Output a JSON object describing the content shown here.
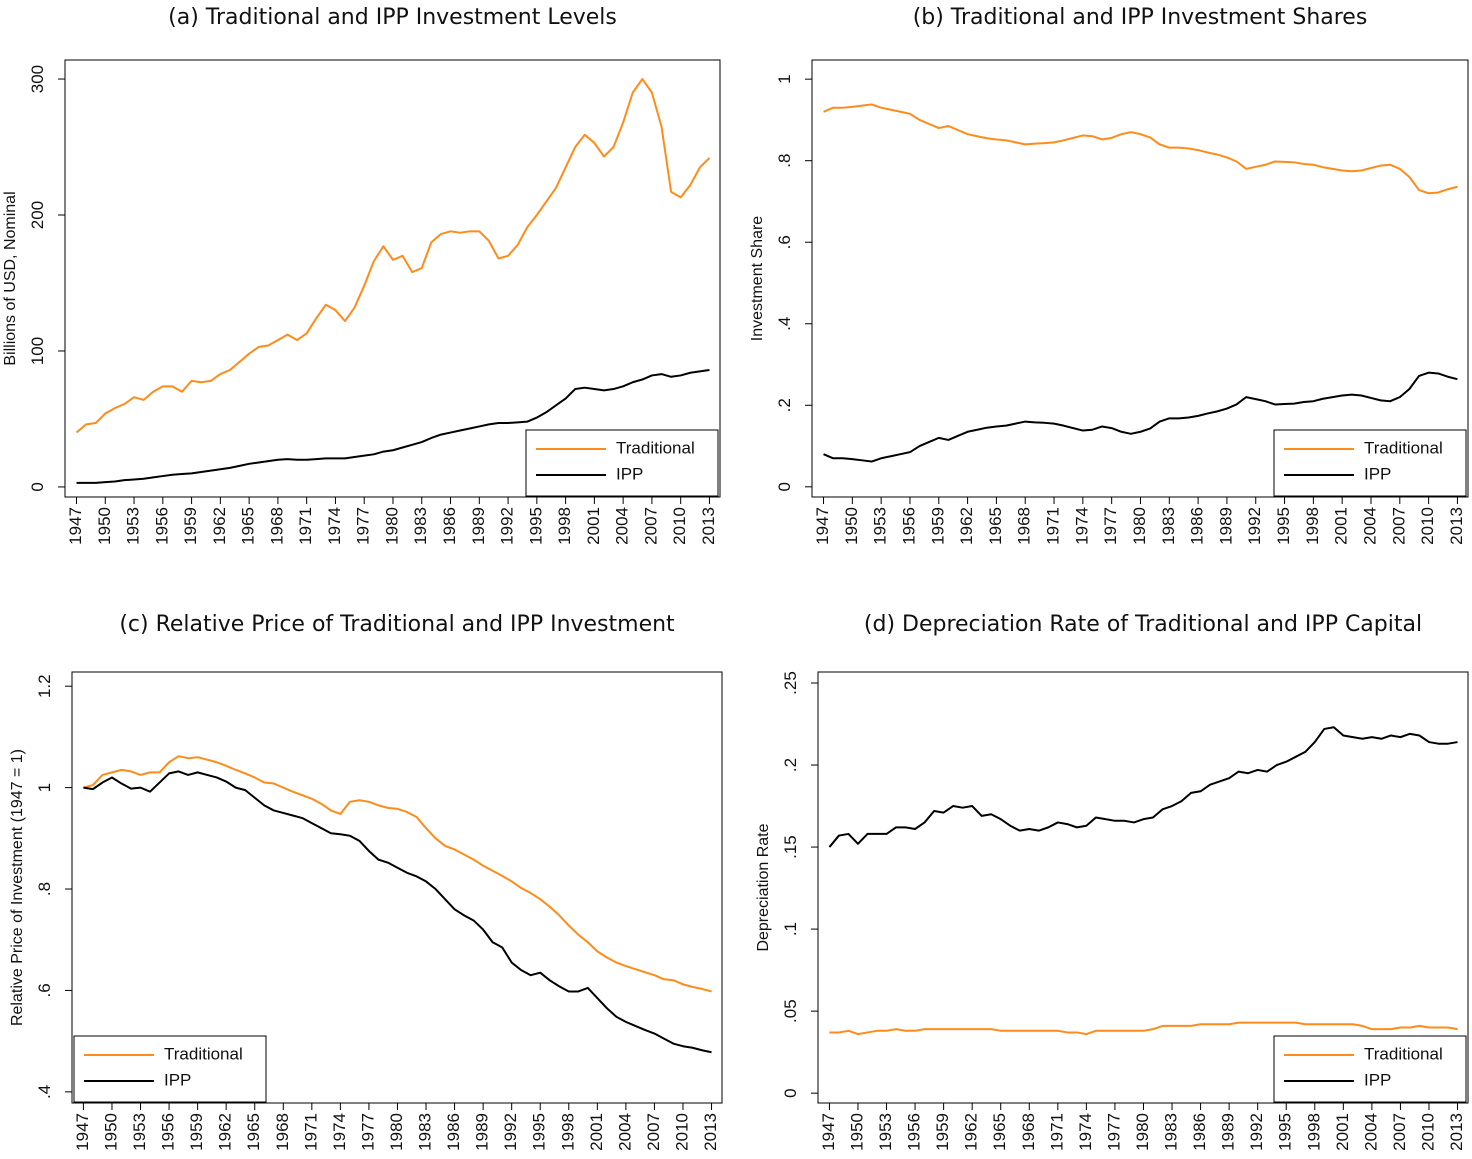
{
  "chart_data": [
    {
      "type": "line",
      "title": "(a) Traditional and IPP Investment Levels",
      "ylabel": "Billions of USD, Nominal",
      "x": [
        1947,
        1948,
        1949,
        1950,
        1951,
        1952,
        1953,
        1954,
        1955,
        1956,
        1957,
        1958,
        1959,
        1960,
        1961,
        1962,
        1963,
        1964,
        1965,
        1966,
        1967,
        1968,
        1969,
        1970,
        1971,
        1972,
        1973,
        1974,
        1975,
        1976,
        1977,
        1978,
        1979,
        1980,
        1981,
        1982,
        1983,
        1984,
        1985,
        1986,
        1987,
        1988,
        1989,
        1990,
        1991,
        1992,
        1993,
        1994,
        1995,
        1996,
        1997,
        1998,
        1999,
        2000,
        2001,
        2002,
        2003,
        2004,
        2005,
        2006,
        2007,
        2008,
        2009,
        2010,
        2011,
        2012,
        2013
      ],
      "series": [
        {
          "name": "Traditional",
          "color": "#ff8c1a",
          "values": [
            40,
            46,
            47,
            54,
            58,
            61,
            66,
            64,
            70,
            74,
            74,
            70,
            78,
            77,
            78,
            83,
            86,
            92,
            98,
            103,
            104,
            108,
            112,
            108,
            113,
            124,
            134,
            130,
            122,
            132,
            148,
            166,
            177,
            167,
            170,
            158,
            161,
            180,
            186,
            188,
            187,
            188,
            188,
            181,
            168,
            170,
            178,
            191,
            200,
            210,
            220,
            235,
            250,
            259,
            253,
            243,
            250,
            268,
            290,
            300,
            290,
            265,
            217,
            213,
            222,
            235,
            242
          ]
        },
        {
          "name": "IPP",
          "color": "#000000",
          "values": [
            3,
            3,
            3,
            3.5,
            4,
            5,
            5.5,
            6,
            7,
            8,
            9,
            9.5,
            10,
            11,
            12,
            13,
            14,
            15.5,
            17,
            18,
            19,
            20,
            20.5,
            20,
            20,
            20.5,
            21,
            21,
            21,
            22,
            23,
            24,
            26,
            27,
            29,
            31,
            33,
            36,
            38.5,
            40,
            41.5,
            43,
            44.5,
            46,
            47,
            47,
            47.5,
            48,
            51,
            55,
            60,
            65,
            72,
            73,
            72,
            71,
            72,
            74,
            77,
            79,
            82,
            83,
            81,
            82,
            84,
            85,
            86
          ]
        }
      ],
      "xlim": [
        1945.8,
        2014.1
      ],
      "ylim": [
        -7.4,
        314
      ],
      "xticks": [
        1947,
        1950,
        1953,
        1956,
        1959,
        1962,
        1965,
        1968,
        1971,
        1974,
        1977,
        1980,
        1983,
        1986,
        1989,
        1992,
        1995,
        1998,
        2001,
        2004,
        2007,
        2010,
        2013
      ],
      "yticks": [
        0,
        100,
        200,
        300
      ],
      "legend": "lower right"
    },
    {
      "type": "line",
      "title": "(b) Traditional and IPP Investment Shares",
      "ylabel": "Investment Share",
      "x": [
        1947,
        1948,
        1949,
        1950,
        1951,
        1952,
        1953,
        1954,
        1955,
        1956,
        1957,
        1958,
        1959,
        1960,
        1961,
        1962,
        1963,
        1964,
        1965,
        1966,
        1967,
        1968,
        1969,
        1970,
        1971,
        1972,
        1973,
        1974,
        1975,
        1976,
        1977,
        1978,
        1979,
        1980,
        1981,
        1982,
        1983,
        1984,
        1985,
        1986,
        1987,
        1988,
        1989,
        1990,
        1991,
        1992,
        1993,
        1994,
        1995,
        1996,
        1997,
        1998,
        1999,
        2000,
        2001,
        2002,
        2003,
        2004,
        2005,
        2006,
        2007,
        2008,
        2009,
        2010,
        2011,
        2012,
        2013
      ],
      "series": [
        {
          "name": "Traditional",
          "color": "#ff8c1a",
          "values": [
            0.92,
            0.93,
            0.93,
            0.932,
            0.935,
            0.938,
            0.93,
            0.925,
            0.92,
            0.915,
            0.9,
            0.89,
            0.88,
            0.885,
            0.875,
            0.865,
            0.86,
            0.855,
            0.852,
            0.85,
            0.845,
            0.84,
            0.842,
            0.843,
            0.845,
            0.85,
            0.856,
            0.862,
            0.86,
            0.852,
            0.856,
            0.865,
            0.87,
            0.865,
            0.857,
            0.84,
            0.832,
            0.832,
            0.83,
            0.826,
            0.82,
            0.815,
            0.808,
            0.798,
            0.78,
            0.785,
            0.79,
            0.798,
            0.797,
            0.796,
            0.792,
            0.79,
            0.784,
            0.78,
            0.776,
            0.774,
            0.776,
            0.782,
            0.788,
            0.79,
            0.78,
            0.76,
            0.728,
            0.72,
            0.722,
            0.73,
            0.736
          ]
        },
        {
          "name": "IPP",
          "color": "#000000",
          "values": [
            0.08,
            0.07,
            0.07,
            0.068,
            0.065,
            0.062,
            0.07,
            0.075,
            0.08,
            0.085,
            0.1,
            0.11,
            0.12,
            0.115,
            0.125,
            0.135,
            0.14,
            0.145,
            0.148,
            0.15,
            0.155,
            0.16,
            0.158,
            0.157,
            0.155,
            0.15,
            0.144,
            0.138,
            0.14,
            0.148,
            0.144,
            0.135,
            0.13,
            0.135,
            0.143,
            0.16,
            0.168,
            0.168,
            0.17,
            0.174,
            0.18,
            0.185,
            0.192,
            0.202,
            0.22,
            0.215,
            0.21,
            0.202,
            0.203,
            0.204,
            0.208,
            0.21,
            0.216,
            0.22,
            0.224,
            0.226,
            0.224,
            0.218,
            0.212,
            0.21,
            0.22,
            0.24,
            0.272,
            0.28,
            0.278,
            0.27,
            0.264
          ]
        }
      ],
      "xlim": [
        1945.8,
        2014.1
      ],
      "ylim": [
        -0.025,
        1.047
      ],
      "xticks": [
        1947,
        1950,
        1953,
        1956,
        1959,
        1962,
        1965,
        1968,
        1971,
        1974,
        1977,
        1980,
        1983,
        1986,
        1989,
        1992,
        1995,
        1998,
        2001,
        2004,
        2007,
        2010,
        2013
      ],
      "yticks": [
        0,
        {
          "value": 0.2,
          "label": ".2"
        },
        {
          "value": 0.4,
          "label": ".4"
        },
        {
          "value": 0.6,
          "label": ".6"
        },
        {
          "value": 0.8,
          "label": ".8"
        },
        1
      ],
      "legend": "lower right"
    },
    {
      "type": "line",
      "title": "(c) Relative Price of Traditional and IPP Investment",
      "ylabel": "Relative Price of Investment (1947 = 1)",
      "x": [
        1947,
        1948,
        1949,
        1950,
        1951,
        1952,
        1953,
        1954,
        1955,
        1956,
        1957,
        1958,
        1959,
        1960,
        1961,
        1962,
        1963,
        1964,
        1965,
        1966,
        1967,
        1968,
        1969,
        1970,
        1971,
        1972,
        1973,
        1974,
        1975,
        1976,
        1977,
        1978,
        1979,
        1980,
        1981,
        1982,
        1983,
        1984,
        1985,
        1986,
        1987,
        1988,
        1989,
        1990,
        1991,
        1992,
        1993,
        1994,
        1995,
        1996,
        1997,
        1998,
        1999,
        2000,
        2001,
        2002,
        2003,
        2004,
        2005,
        2006,
        2007,
        2008,
        2009,
        2010,
        2011,
        2012,
        2013
      ],
      "series": [
        {
          "name": "Traditional",
          "color": "#ff8c1a",
          "values": [
            1.0,
            1.005,
            1.025,
            1.03,
            1.035,
            1.032,
            1.025,
            1.03,
            1.03,
            1.05,
            1.062,
            1.058,
            1.06,
            1.055,
            1.05,
            1.043,
            1.035,
            1.028,
            1.02,
            1.01,
            1.008,
            1.0,
            0.992,
            0.985,
            0.978,
            0.968,
            0.955,
            0.948,
            0.972,
            0.975,
            0.972,
            0.965,
            0.96,
            0.958,
            0.952,
            0.942,
            0.92,
            0.9,
            0.885,
            0.878,
            0.868,
            0.858,
            0.846,
            0.836,
            0.826,
            0.815,
            0.802,
            0.792,
            0.78,
            0.765,
            0.748,
            0.728,
            0.71,
            0.695,
            0.677,
            0.665,
            0.655,
            0.648,
            0.642,
            0.636,
            0.63,
            0.622,
            0.62,
            0.612,
            0.607,
            0.603,
            0.598
          ]
        },
        {
          "name": "IPP",
          "color": "#000000",
          "values": [
            1.0,
            0.997,
            1.01,
            1.02,
            1.008,
            0.998,
            1.0,
            0.992,
            1.01,
            1.028,
            1.032,
            1.025,
            1.03,
            1.025,
            1.02,
            1.012,
            1.0,
            0.995,
            0.98,
            0.965,
            0.955,
            0.95,
            0.945,
            0.94,
            0.93,
            0.92,
            0.91,
            0.908,
            0.905,
            0.895,
            0.875,
            0.858,
            0.852,
            0.842,
            0.832,
            0.825,
            0.815,
            0.8,
            0.78,
            0.76,
            0.748,
            0.738,
            0.72,
            0.695,
            0.685,
            0.655,
            0.64,
            0.63,
            0.635,
            0.62,
            0.608,
            0.598,
            0.598,
            0.605,
            0.585,
            0.565,
            0.548,
            0.538,
            0.53,
            0.522,
            0.515,
            0.505,
            0.495,
            0.49,
            0.487,
            0.482,
            0.478
          ]
        }
      ],
      "xlim": [
        1945.8,
        2014.1
      ],
      "ylim": [
        0.378,
        1.228
      ],
      "xticks": [
        1947,
        1950,
        1953,
        1956,
        1959,
        1962,
        1965,
        1968,
        1971,
        1974,
        1977,
        1980,
        1983,
        1986,
        1989,
        1992,
        1995,
        1998,
        2001,
        2004,
        2007,
        2010,
        2013
      ],
      "yticks": [
        {
          "value": 0.4,
          "label": ".4"
        },
        {
          "value": 0.6,
          "label": ".6"
        },
        {
          "value": 0.8,
          "label": ".8"
        },
        1,
        1.2
      ],
      "legend": "lower left"
    },
    {
      "type": "line",
      "title": "(d) Depreciation Rate of Traditional and IPP Capital",
      "ylabel": "Depreciation Rate",
      "x": [
        1947,
        1948,
        1949,
        1950,
        1951,
        1952,
        1953,
        1954,
        1955,
        1956,
        1957,
        1958,
        1959,
        1960,
        1961,
        1962,
        1963,
        1964,
        1965,
        1966,
        1967,
        1968,
        1969,
        1970,
        1971,
        1972,
        1973,
        1974,
        1975,
        1976,
        1977,
        1978,
        1979,
        1980,
        1981,
        1982,
        1983,
        1984,
        1985,
        1986,
        1987,
        1988,
        1989,
        1990,
        1991,
        1992,
        1993,
        1994,
        1995,
        1996,
        1997,
        1998,
        1999,
        2000,
        2001,
        2002,
        2003,
        2004,
        2005,
        2006,
        2007,
        2008,
        2009,
        2010,
        2011,
        2012,
        2013
      ],
      "series": [
        {
          "name": "Traditional",
          "color": "#ff8c1a",
          "values": [
            0.037,
            0.037,
            0.038,
            0.036,
            0.037,
            0.038,
            0.038,
            0.039,
            0.038,
            0.038,
            0.039,
            0.039,
            0.039,
            0.039,
            0.039,
            0.039,
            0.039,
            0.039,
            0.038,
            0.038,
            0.038,
            0.038,
            0.038,
            0.038,
            0.038,
            0.037,
            0.037,
            0.036,
            0.038,
            0.038,
            0.038,
            0.038,
            0.038,
            0.038,
            0.039,
            0.041,
            0.041,
            0.041,
            0.041,
            0.042,
            0.042,
            0.042,
            0.042,
            0.043,
            0.043,
            0.043,
            0.043,
            0.043,
            0.043,
            0.043,
            0.042,
            0.042,
            0.042,
            0.042,
            0.042,
            0.042,
            0.041,
            0.039,
            0.039,
            0.039,
            0.04,
            0.04,
            0.041,
            0.04,
            0.04,
            0.04,
            0.039
          ]
        },
        {
          "name": "IPP",
          "color": "#000000",
          "values": [
            0.15,
            0.157,
            0.158,
            0.152,
            0.158,
            0.158,
            0.158,
            0.162,
            0.162,
            0.161,
            0.165,
            0.172,
            0.171,
            0.175,
            0.174,
            0.175,
            0.169,
            0.17,
            0.167,
            0.163,
            0.16,
            0.161,
            0.16,
            0.162,
            0.165,
            0.164,
            0.162,
            0.163,
            0.168,
            0.167,
            0.166,
            0.166,
            0.165,
            0.167,
            0.168,
            0.173,
            0.175,
            0.178,
            0.183,
            0.184,
            0.188,
            0.19,
            0.192,
            0.196,
            0.195,
            0.197,
            0.196,
            0.2,
            0.202,
            0.205,
            0.208,
            0.214,
            0.222,
            0.223,
            0.218,
            0.217,
            0.216,
            0.217,
            0.216,
            0.218,
            0.217,
            0.219,
            0.218,
            0.214,
            0.213,
            0.213,
            0.214
          ]
        }
      ],
      "xlim": [
        1945.8,
        2014.1
      ],
      "ylim": [
        -0.006,
        0.2567
      ],
      "xticks": [
        1947,
        1950,
        1953,
        1956,
        1959,
        1962,
        1965,
        1968,
        1971,
        1974,
        1977,
        1980,
        1983,
        1986,
        1989,
        1992,
        1995,
        1998,
        2001,
        2004,
        2007,
        2010,
        2013
      ],
      "yticks": [
        0,
        {
          "value": 0.05,
          "label": ".05"
        },
        {
          "value": 0.1,
          "label": ".1"
        },
        {
          "value": 0.15,
          "label": ".15"
        },
        {
          "value": 0.2,
          "label": ".2"
        },
        {
          "value": 0.25,
          "label": ".25"
        }
      ],
      "legend": "lower right"
    }
  ]
}
